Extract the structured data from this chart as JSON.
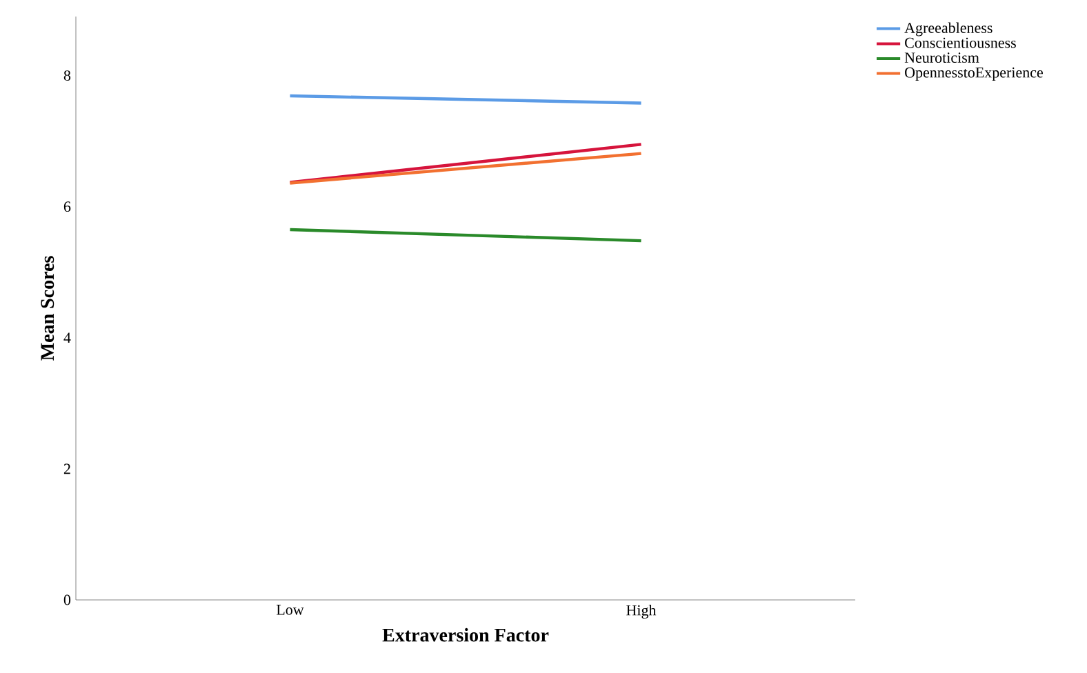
{
  "chart_data": {
    "type": "line",
    "xlabel": "Extraversion Factor",
    "ylabel": "Mean Scores",
    "categories": [
      "Low",
      "High"
    ],
    "series": [
      {
        "name": "Agreeableness",
        "color": "#5b9be6",
        "values": [
          7.69,
          7.58
        ]
      },
      {
        "name": "Conscientiousness",
        "color": "#d6143c",
        "values": [
          6.37,
          6.95
        ]
      },
      {
        "name": "Neuroticism",
        "color": "#2a8a2a",
        "values": [
          5.65,
          5.48
        ]
      },
      {
        "name": "OpennesstoExperience",
        "color": "#f27030",
        "values": [
          6.36,
          6.81
        ]
      }
    ],
    "ylim": [
      0,
      8.9
    ],
    "yticks": [
      0,
      2,
      4,
      6,
      8
    ],
    "grid": false,
    "legend": "top right",
    "marker": "none",
    "line_style": "solid"
  }
}
